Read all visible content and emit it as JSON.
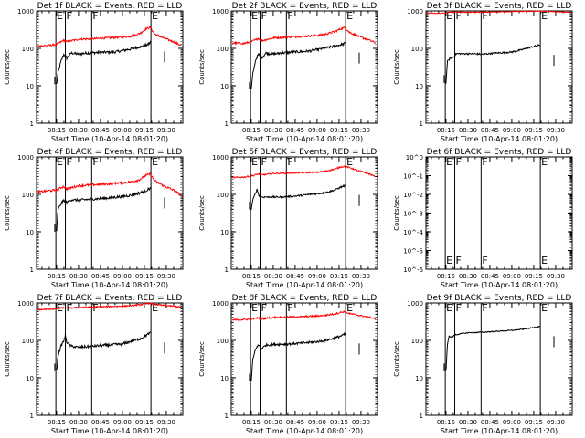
{
  "figure": {
    "background": "#ffffff",
    "axis_color": "#000000",
    "events_color": "#000000",
    "lld_color": "#ff0000",
    "y_axis_label": "Counts/sec",
    "x_axis_label": "Start Time (10-Apr-14 08:01:20)",
    "x_ticks": [
      "08:15",
      "08:30",
      "08:45",
      "09:00",
      "09:15",
      "09:30"
    ],
    "x_tick_minutes": [
      15,
      30,
      45,
      60,
      75,
      90
    ],
    "x_range_minutes": [
      1.3,
      101.3
    ],
    "y_ticks_log": [
      "1",
      "10",
      "100",
      "1000"
    ],
    "y_ticks_6f": [
      "10^0",
      "10^-1",
      "10^-2",
      "10^-3",
      "10^-4",
      "10^-5",
      "10^-6"
    ],
    "markers": [
      {
        "label": "E",
        "minute": 14.5
      },
      {
        "label": "F",
        "minute": 21.0
      },
      {
        "label": "F",
        "minute": 39.0
      },
      {
        "label": "E",
        "minute": 79.5
      }
    ]
  },
  "chart_data": [
    {
      "type": "line",
      "log_y": true,
      "ylim": [
        1,
        1000
      ],
      "title": "Det 1f BLACK = Events, RED = LLD",
      "series": [
        {
          "name": "Events",
          "points": [
            [
              15,
              11
            ],
            [
              16,
              22
            ],
            [
              18,
              45
            ],
            [
              20,
              70
            ],
            [
              22,
              55
            ],
            [
              25,
              75
            ],
            [
              30,
              70
            ],
            [
              35,
              75
            ],
            [
              45,
              78
            ],
            [
              55,
              80
            ],
            [
              65,
              95
            ],
            [
              72,
              110
            ],
            [
              76,
              120
            ],
            [
              78,
              130
            ],
            [
              79.5,
              150
            ]
          ],
          "noise": 0.08
        },
        {
          "name": "LLD",
          "points": [
            [
              2,
              115
            ],
            [
              10,
              120
            ],
            [
              15,
              128
            ],
            [
              20,
              165
            ],
            [
              22,
              150
            ],
            [
              30,
              175
            ],
            [
              40,
              180
            ],
            [
              50,
              190
            ],
            [
              60,
              200
            ],
            [
              66,
              210
            ],
            [
              72,
              250
            ],
            [
              76,
              330
            ],
            [
              79,
              370
            ],
            [
              82,
              240
            ],
            [
              88,
              190
            ],
            [
              95,
              150
            ],
            [
              100,
              120
            ]
          ],
          "noise": 0.06
        }
      ]
    },
    {
      "type": "line",
      "log_y": true,
      "ylim": [
        1,
        1000
      ],
      "title": "Det 2f BLACK = Events, RED = LLD",
      "series": [
        {
          "name": "Events",
          "points": [
            [
              15,
              8
            ],
            [
              16,
              20
            ],
            [
              18,
              50
            ],
            [
              20,
              70
            ],
            [
              22,
              55
            ],
            [
              25,
              75
            ],
            [
              30,
              70
            ],
            [
              35,
              75
            ],
            [
              45,
              80
            ],
            [
              55,
              85
            ],
            [
              65,
              100
            ],
            [
              72,
              115
            ],
            [
              76,
              125
            ],
            [
              78,
              130
            ],
            [
              79.5,
              140
            ]
          ],
          "noise": 0.08
        },
        {
          "name": "LLD",
          "points": [
            [
              2,
              140
            ],
            [
              10,
              135
            ],
            [
              15,
              150
            ],
            [
              20,
              185
            ],
            [
              22,
              160
            ],
            [
              30,
              190
            ],
            [
              40,
              200
            ],
            [
              50,
              210
            ],
            [
              60,
              220
            ],
            [
              66,
              240
            ],
            [
              72,
              280
            ],
            [
              76,
              330
            ],
            [
              79,
              360
            ],
            [
              82,
              270
            ],
            [
              88,
              210
            ],
            [
              95,
              170
            ],
            [
              100,
              140
            ]
          ],
          "noise": 0.06
        }
      ]
    },
    {
      "type": "line",
      "log_y": true,
      "ylim": [
        1,
        1000
      ],
      "title": "Det 3f BLACK = Events, RED = LLD",
      "series": [
        {
          "name": "Events",
          "points": [
            [
              15,
              12
            ],
            [
              16,
              45
            ],
            [
              18,
              55
            ],
            [
              20,
              58
            ],
            [
              22,
              72
            ],
            [
              30,
              72
            ],
            [
              40,
              70
            ],
            [
              50,
              75
            ],
            [
              60,
              80
            ],
            [
              66,
              90
            ],
            [
              72,
              105
            ],
            [
              76,
              115
            ],
            [
              78,
              120
            ],
            [
              79.5,
              122
            ]
          ],
          "noise": 0.05
        },
        {
          "name": "LLD",
          "points": [
            [
              2,
              880
            ],
            [
              10,
              860
            ],
            [
              15,
              900
            ],
            [
              20,
              940
            ],
            [
              30,
              920
            ],
            [
              40,
              930
            ],
            [
              50,
              950
            ],
            [
              60,
              960
            ],
            [
              70,
              970
            ],
            [
              79,
              990
            ],
            [
              85,
              970
            ],
            [
              90,
              950
            ],
            [
              95,
              930
            ],
            [
              100,
              910
            ]
          ],
          "noise": 0.02
        }
      ]
    },
    {
      "type": "line",
      "log_y": true,
      "ylim": [
        1,
        1000
      ],
      "title": "Det 4f BLACK = Events, RED = LLD",
      "series": [
        {
          "name": "Events",
          "points": [
            [
              15,
              10
            ],
            [
              16,
              40
            ],
            [
              18,
              55
            ],
            [
              20,
              70
            ],
            [
              22,
              60
            ],
            [
              25,
              72
            ],
            [
              30,
              70
            ],
            [
              40,
              75
            ],
            [
              50,
              80
            ],
            [
              60,
              88
            ],
            [
              66,
              95
            ],
            [
              72,
              110
            ],
            [
              76,
              125
            ],
            [
              78,
              140
            ],
            [
              79.5,
              150
            ]
          ],
          "noise": 0.08
        },
        {
          "name": "LLD",
          "points": [
            [
              2,
              115
            ],
            [
              10,
              125
            ],
            [
              15,
              130
            ],
            [
              20,
              165
            ],
            [
              22,
              140
            ],
            [
              30,
              170
            ],
            [
              40,
              180
            ],
            [
              50,
              190
            ],
            [
              60,
              205
            ],
            [
              66,
              215
            ],
            [
              72,
              250
            ],
            [
              76,
              320
            ],
            [
              79,
              350
            ],
            [
              82,
              230
            ],
            [
              88,
              170
            ],
            [
              95,
              130
            ],
            [
              100,
              95
            ]
          ],
          "noise": 0.07
        }
      ]
    },
    {
      "type": "line",
      "log_y": true,
      "ylim": [
        1,
        1000
      ],
      "title": "Det 5f BLACK = Events, RED = LLD",
      "series": [
        {
          "name": "Events",
          "points": [
            [
              15,
              40
            ],
            [
              16,
              70
            ],
            [
              18,
              110
            ],
            [
              19,
              140
            ],
            [
              20,
              95
            ],
            [
              22,
              85
            ],
            [
              25,
              85
            ],
            [
              35,
              85
            ],
            [
              45,
              90
            ],
            [
              55,
              100
            ],
            [
              65,
              110
            ],
            [
              72,
              130
            ],
            [
              76,
              155
            ],
            [
              78,
              165
            ],
            [
              79.5,
              175
            ]
          ],
          "noise": 0.05
        },
        {
          "name": "LLD",
          "points": [
            [
              2,
              280
            ],
            [
              10,
              290
            ],
            [
              15,
              310
            ],
            [
              20,
              350
            ],
            [
              22,
              330
            ],
            [
              30,
              360
            ],
            [
              40,
              370
            ],
            [
              50,
              380
            ],
            [
              60,
              390
            ],
            [
              66,
              420
            ],
            [
              72,
              470
            ],
            [
              76,
              540
            ],
            [
              79,
              560
            ],
            [
              82,
              520
            ],
            [
              88,
              430
            ],
            [
              95,
              360
            ],
            [
              100,
              300
            ]
          ],
          "noise": 0.04
        }
      ]
    },
    {
      "type": "line",
      "log_y": true,
      "ylim": [
        1e-06,
        1
      ],
      "title": "Det 6f BLACK = Events, RED = LLD",
      "series": []
    },
    {
      "type": "line",
      "log_y": true,
      "ylim": [
        1,
        1000
      ],
      "title": "Det 7f BLACK = Events, RED = LLD",
      "series": [
        {
          "name": "Events",
          "points": [
            [
              15,
              15
            ],
            [
              16,
              40
            ],
            [
              18,
              70
            ],
            [
              20,
              100
            ],
            [
              21,
              130
            ],
            [
              22,
              90
            ],
            [
              25,
              70
            ],
            [
              30,
              65
            ],
            [
              40,
              70
            ],
            [
              50,
              75
            ],
            [
              60,
              80
            ],
            [
              66,
              95
            ],
            [
              72,
              110
            ],
            [
              76,
              135
            ],
            [
              78,
              150
            ],
            [
              79.5,
              160
            ]
          ],
          "noise": 0.08
        },
        {
          "name": "LLD",
          "points": [
            [
              2,
              660
            ],
            [
              10,
              680
            ],
            [
              15,
              700
            ],
            [
              20,
              750
            ],
            [
              22,
              720
            ],
            [
              30,
              760
            ],
            [
              40,
              780
            ],
            [
              50,
              800
            ],
            [
              60,
              820
            ],
            [
              66,
              850
            ],
            [
              72,
              900
            ],
            [
              76,
              950
            ],
            [
              79,
              980
            ],
            [
              82,
              920
            ],
            [
              88,
              860
            ],
            [
              95,
              820
            ],
            [
              100,
              780
            ]
          ],
          "noise": 0.04
        }
      ]
    },
    {
      "type": "line",
      "log_y": true,
      "ylim": [
        1,
        1000
      ],
      "title": "Det 8f BLACK = Events, RED = LLD",
      "series": [
        {
          "name": "Events",
          "points": [
            [
              15,
              8
            ],
            [
              16,
              30
            ],
            [
              18,
              60
            ],
            [
              20,
              75
            ],
            [
              22,
              60
            ],
            [
              25,
              75
            ],
            [
              30,
              78
            ],
            [
              40,
              80
            ],
            [
              50,
              85
            ],
            [
              60,
              92
            ],
            [
              66,
              100
            ],
            [
              72,
              115
            ],
            [
              76,
              130
            ],
            [
              78,
              140
            ],
            [
              79.5,
              150
            ]
          ],
          "noise": 0.07
        },
        {
          "name": "LLD",
          "points": [
            [
              2,
              350
            ],
            [
              10,
              360
            ],
            [
              15,
              370
            ],
            [
              20,
              400
            ],
            [
              22,
              380
            ],
            [
              30,
              410
            ],
            [
              40,
              420
            ],
            [
              50,
              430
            ],
            [
              60,
              450
            ],
            [
              66,
              470
            ],
            [
              72,
              510
            ],
            [
              76,
              560
            ],
            [
              79,
              590
            ],
            [
              82,
              520
            ],
            [
              88,
              470
            ],
            [
              95,
              420
            ],
            [
              100,
              380
            ]
          ],
          "noise": 0.05
        }
      ]
    },
    {
      "type": "line",
      "log_y": true,
      "ylim": [
        1,
        1000
      ],
      "title": "Det 9f BLACK = Events, RED = LLD",
      "series": [
        {
          "name": "Events",
          "points": [
            [
              15,
              15
            ],
            [
              16,
              80
            ],
            [
              17,
              130
            ],
            [
              19,
              120
            ],
            [
              21,
              140
            ],
            [
              25,
              150
            ],
            [
              30,
              160
            ],
            [
              40,
              165
            ],
            [
              50,
              175
            ],
            [
              60,
              185
            ],
            [
              66,
              195
            ],
            [
              72,
              210
            ],
            [
              76,
              225
            ],
            [
              78,
              232
            ],
            [
              79.5,
              235
            ]
          ],
          "noise": 0.03
        }
      ]
    }
  ]
}
